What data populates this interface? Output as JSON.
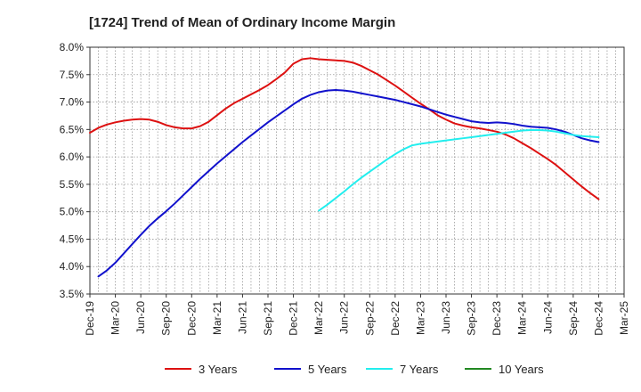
{
  "chart_data": {
    "type": "line",
    "title": "[1724]  Trend of Mean of Ordinary Income Margin",
    "xlabel": "",
    "ylabel": "",
    "x_ticks": [
      "Dec-19",
      "Mar-20",
      "Jun-20",
      "Sep-20",
      "Dec-20",
      "Mar-21",
      "Jun-21",
      "Sep-21",
      "Dec-21",
      "Mar-22",
      "Jun-22",
      "Sep-22",
      "Dec-22",
      "Mar-23",
      "Jun-23",
      "Sep-23",
      "Dec-23",
      "Mar-24",
      "Jun-24",
      "Sep-24",
      "Dec-24",
      "Mar-25"
    ],
    "y_ticks": [
      "3.5%",
      "4.0%",
      "4.5%",
      "5.0%",
      "5.5%",
      "6.0%",
      "6.5%",
      "7.0%",
      "7.5%",
      "8.0%"
    ],
    "ylim": [
      3.5,
      8.0
    ],
    "grid": true,
    "legend_position": "bottom",
    "series": [
      {
        "name": "3 Years",
        "color": "#dd1111",
        "points": [
          [
            "Dec-19",
            6.44
          ],
          [
            "Jan-20",
            6.53
          ],
          [
            "Feb-20",
            6.59
          ],
          [
            "Mar-20",
            6.63
          ],
          [
            "Apr-20",
            6.66
          ],
          [
            "May-20",
            6.68
          ],
          [
            "Jun-20",
            6.69
          ],
          [
            "Jul-20",
            6.68
          ],
          [
            "Aug-20",
            6.64
          ],
          [
            "Sep-20",
            6.58
          ],
          [
            "Oct-20",
            6.54
          ],
          [
            "Nov-20",
            6.52
          ],
          [
            "Dec-20",
            6.52
          ],
          [
            "Jan-21",
            6.56
          ],
          [
            "Feb-21",
            6.64
          ],
          [
            "Mar-21",
            6.76
          ],
          [
            "Apr-21",
            6.88
          ],
          [
            "May-21",
            6.98
          ],
          [
            "Jun-21",
            7.06
          ],
          [
            "Jul-21",
            7.14
          ],
          [
            "Aug-21",
            7.22
          ],
          [
            "Sep-21",
            7.31
          ],
          [
            "Oct-21",
            7.42
          ],
          [
            "Nov-21",
            7.54
          ],
          [
            "Dec-21",
            7.7
          ],
          [
            "Jan-22",
            7.78
          ],
          [
            "Feb-22",
            7.8
          ],
          [
            "Mar-22",
            7.78
          ],
          [
            "Apr-22",
            7.77
          ],
          [
            "May-22",
            7.76
          ],
          [
            "Jun-22",
            7.75
          ],
          [
            "Jul-22",
            7.72
          ],
          [
            "Aug-22",
            7.66
          ],
          [
            "Sep-22",
            7.58
          ],
          [
            "Oct-22",
            7.5
          ],
          [
            "Nov-22",
            7.4
          ],
          [
            "Dec-22",
            7.3
          ],
          [
            "Jan-23",
            7.19
          ],
          [
            "Feb-23",
            7.08
          ],
          [
            "Mar-23",
            6.97
          ],
          [
            "Apr-23",
            6.87
          ],
          [
            "May-23",
            6.76
          ],
          [
            "Jun-23",
            6.68
          ],
          [
            "Jul-23",
            6.61
          ],
          [
            "Aug-23",
            6.57
          ],
          [
            "Sep-23",
            6.54
          ],
          [
            "Oct-23",
            6.52
          ],
          [
            "Nov-23",
            6.49
          ],
          [
            "Dec-23",
            6.46
          ],
          [
            "Jan-24",
            6.41
          ],
          [
            "Feb-24",
            6.34
          ],
          [
            "Mar-24",
            6.25
          ],
          [
            "Apr-24",
            6.16
          ],
          [
            "May-24",
            6.06
          ],
          [
            "Jun-24",
            5.96
          ],
          [
            "Jul-24",
            5.85
          ],
          [
            "Aug-24",
            5.72
          ],
          [
            "Sep-24",
            5.59
          ],
          [
            "Oct-24",
            5.46
          ],
          [
            "Nov-24",
            5.34
          ],
          [
            "Dec-24",
            5.23
          ]
        ]
      },
      {
        "name": "5 Years",
        "color": "#1111cc",
        "points": [
          [
            "Jan-20",
            3.82
          ],
          [
            "Feb-20",
            3.93
          ],
          [
            "Mar-20",
            4.07
          ],
          [
            "Apr-20",
            4.24
          ],
          [
            "May-20",
            4.41
          ],
          [
            "Jun-20",
            4.58
          ],
          [
            "Jul-20",
            4.74
          ],
          [
            "Aug-20",
            4.88
          ],
          [
            "Sep-20",
            5.01
          ],
          [
            "Oct-20",
            5.15
          ],
          [
            "Nov-20",
            5.3
          ],
          [
            "Dec-20",
            5.45
          ],
          [
            "Jan-21",
            5.6
          ],
          [
            "Feb-21",
            5.74
          ],
          [
            "Mar-21",
            5.88
          ],
          [
            "Apr-21",
            6.01
          ],
          [
            "May-21",
            6.14
          ],
          [
            "Jun-21",
            6.27
          ],
          [
            "Jul-21",
            6.39
          ],
          [
            "Aug-21",
            6.51
          ],
          [
            "Sep-21",
            6.63
          ],
          [
            "Oct-21",
            6.74
          ],
          [
            "Nov-21",
            6.85
          ],
          [
            "Dec-21",
            6.96
          ],
          [
            "Jan-22",
            7.06
          ],
          [
            "Feb-22",
            7.13
          ],
          [
            "Mar-22",
            7.18
          ],
          [
            "Apr-22",
            7.21
          ],
          [
            "May-22",
            7.22
          ],
          [
            "Jun-22",
            7.21
          ],
          [
            "Jul-22",
            7.19
          ],
          [
            "Aug-22",
            7.16
          ],
          [
            "Sep-22",
            7.13
          ],
          [
            "Oct-22",
            7.1
          ],
          [
            "Nov-22",
            7.07
          ],
          [
            "Dec-22",
            7.04
          ],
          [
            "Jan-23",
            7.0
          ],
          [
            "Feb-23",
            6.96
          ],
          [
            "Mar-23",
            6.92
          ],
          [
            "Apr-23",
            6.87
          ],
          [
            "May-23",
            6.82
          ],
          [
            "Jun-23",
            6.77
          ],
          [
            "Jul-23",
            6.73
          ],
          [
            "Aug-23",
            6.69
          ],
          [
            "Sep-23",
            6.65
          ],
          [
            "Oct-23",
            6.63
          ],
          [
            "Nov-23",
            6.62
          ],
          [
            "Dec-23",
            6.63
          ],
          [
            "Jan-24",
            6.62
          ],
          [
            "Feb-24",
            6.6
          ],
          [
            "Mar-24",
            6.57
          ],
          [
            "Apr-24",
            6.55
          ],
          [
            "May-24",
            6.54
          ],
          [
            "Jun-24",
            6.53
          ],
          [
            "Jul-24",
            6.5
          ],
          [
            "Aug-24",
            6.46
          ],
          [
            "Sep-24",
            6.4
          ],
          [
            "Oct-24",
            6.34
          ],
          [
            "Nov-24",
            6.3
          ],
          [
            "Dec-24",
            6.27
          ]
        ]
      },
      {
        "name": "7 Years",
        "color": "#22eeee",
        "points": [
          [
            "Mar-22",
            5.02
          ],
          [
            "Apr-22",
            5.13
          ],
          [
            "May-22",
            5.25
          ],
          [
            "Jun-22",
            5.37
          ],
          [
            "Jul-22",
            5.5
          ],
          [
            "Aug-22",
            5.62
          ],
          [
            "Sep-22",
            5.73
          ],
          [
            "Oct-22",
            5.84
          ],
          [
            "Nov-22",
            5.95
          ],
          [
            "Dec-22",
            6.05
          ],
          [
            "Jan-23",
            6.14
          ],
          [
            "Feb-23",
            6.21
          ],
          [
            "Mar-23",
            6.24
          ],
          [
            "Apr-23",
            6.26
          ],
          [
            "May-23",
            6.28
          ],
          [
            "Jun-23",
            6.3
          ],
          [
            "Jul-23",
            6.32
          ],
          [
            "Aug-23",
            6.34
          ],
          [
            "Sep-23",
            6.36
          ],
          [
            "Oct-23",
            6.38
          ],
          [
            "Nov-23",
            6.4
          ],
          [
            "Dec-23",
            6.42
          ],
          [
            "Jan-24",
            6.44
          ],
          [
            "Feb-24",
            6.46
          ],
          [
            "Mar-24",
            6.48
          ],
          [
            "Apr-24",
            6.49
          ],
          [
            "May-24",
            6.49
          ],
          [
            "Jun-24",
            6.48
          ],
          [
            "Jul-24",
            6.46
          ],
          [
            "Aug-24",
            6.43
          ],
          [
            "Sep-24",
            6.4
          ],
          [
            "Oct-24",
            6.38
          ],
          [
            "Nov-24",
            6.37
          ],
          [
            "Dec-24",
            6.36
          ]
        ]
      },
      {
        "name": "10 Years",
        "color": "#228822",
        "points": []
      }
    ]
  }
}
